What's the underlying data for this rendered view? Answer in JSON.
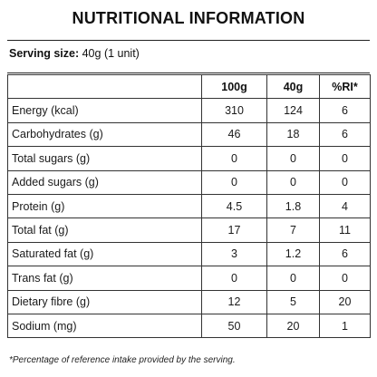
{
  "title": "NUTRITIONAL INFORMATION",
  "serving": {
    "label": "Serving size:",
    "value": "40g (1 unit)"
  },
  "table": {
    "headers": [
      "",
      "100g",
      "40g",
      "%RI*"
    ],
    "rows": [
      {
        "name": "Energy (kcal)",
        "per100": "310",
        "per40": "124",
        "ri": "6"
      },
      {
        "name": "Carbohydrates (g)",
        "per100": "46",
        "per40": "18",
        "ri": "6"
      },
      {
        "name": "Total sugars (g)",
        "per100": "0",
        "per40": "0",
        "ri": "0"
      },
      {
        "name": "Added sugars (g)",
        "per100": "0",
        "per40": "0",
        "ri": "0"
      },
      {
        "name": "Protein (g)",
        "per100": "4.5",
        "per40": "1.8",
        "ri": "4"
      },
      {
        "name": "Total fat (g)",
        "per100": "17",
        "per40": "7",
        "ri": "11"
      },
      {
        "name": "Saturated fat (g)",
        "per100": "3",
        "per40": "1.2",
        "ri": "6"
      },
      {
        "name": "Trans fat (g)",
        "per100": "0",
        "per40": "0",
        "ri": "0"
      },
      {
        "name": "Dietary fibre (g)",
        "per100": "12",
        "per40": "5",
        "ri": "20"
      },
      {
        "name": "Sodium (mg)",
        "per100": "50",
        "per40": "20",
        "ri": "1"
      }
    ]
  },
  "footnote": "*Percentage of reference intake provided by the serving."
}
